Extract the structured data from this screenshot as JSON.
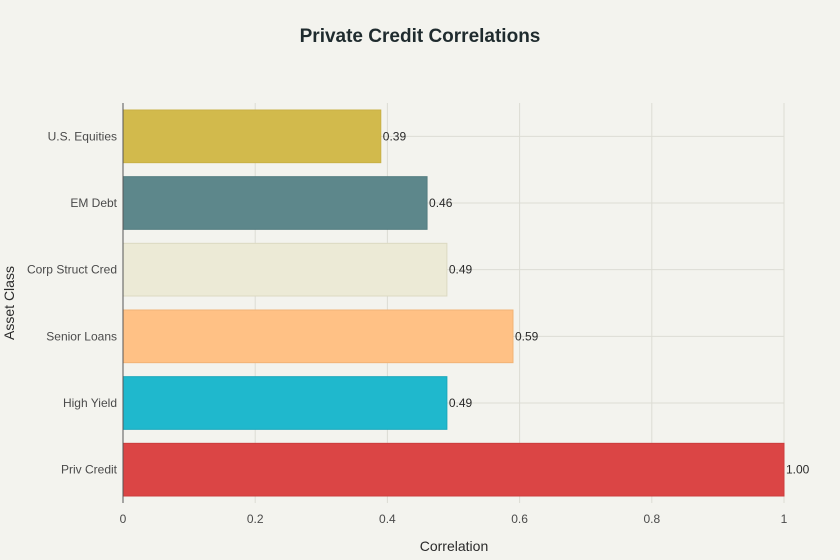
{
  "chart_data": {
    "type": "bar",
    "orientation": "horizontal",
    "title": "Private Credit Correlations",
    "xlabel": "Correlation",
    "ylabel": "Asset Class",
    "xlim": [
      0,
      1
    ],
    "xticks": [
      0,
      0.2,
      0.4,
      0.6,
      0.8,
      1
    ],
    "xtick_labels": [
      "0",
      "0.2",
      "0.4",
      "0.6",
      "0.8",
      "1"
    ],
    "grid": true,
    "categories": [
      "U.S. Equities",
      "EM Debt",
      "Corp Struct Cred",
      "Senior Loans",
      "High Yield",
      "Priv Credit"
    ],
    "values": [
      0.39,
      0.46,
      0.49,
      0.59,
      0.49,
      1.0
    ],
    "value_labels": [
      "0.39",
      "0.46",
      "0.49",
      "0.59",
      "0.49",
      "1.00"
    ],
    "colors": [
      "#D2BA4C",
      "#5D878B",
      "#ECEAD6",
      "#FFC185",
      "#1FB8CD",
      "#DB4545"
    ],
    "border_colors": [
      "#C9B045",
      "#537C80",
      "#DCD9C2",
      "#F2B376",
      "#1AA8BC",
      "#CC3D3D"
    ]
  }
}
